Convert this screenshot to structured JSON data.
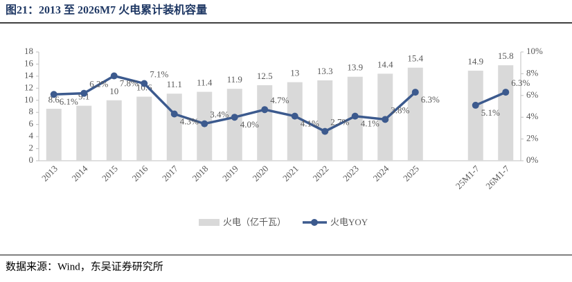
{
  "chart_data": {
    "type": "bar-line",
    "title": "图21：2013 至 2026M7 火电累计装机容量",
    "source": "数据来源：Wind，东吴证券研究所",
    "categories": [
      "2013",
      "2014",
      "2015",
      "2016",
      "2017",
      "2018",
      "2019",
      "2020",
      "2021",
      "2022",
      "2023",
      "2024",
      "2025",
      null,
      "25M1-7",
      "26M1-7"
    ],
    "series": [
      {
        "name": "火电（亿千瓦）",
        "type": "bar",
        "color": "#d9d9d9",
        "values": [
          8.6,
          9.1,
          10.0,
          10.6,
          11.1,
          11.4,
          11.9,
          12.5,
          13.0,
          13.3,
          13.9,
          14.4,
          15.4,
          null,
          14.9,
          15.8
        ]
      },
      {
        "name": "火电YOY",
        "type": "line",
        "axis": "y2",
        "color": "#3c5a8e",
        "values": [
          6.1,
          6.2,
          7.8,
          7.1,
          4.3,
          3.4,
          4.0,
          4.7,
          4.1,
          2.7,
          4.1,
          3.8,
          6.3,
          null,
          5.1,
          6.3
        ],
        "value_labels": [
          "6.1%",
          "6.2%",
          "7.8%",
          "7.1%",
          "4.3%",
          "3.4%",
          "4.0%",
          "4.7%",
          "4.1%",
          "2.7%",
          "4.1%",
          "3.8%",
          "6.3%",
          null,
          "5.1%",
          "6.3%"
        ]
      }
    ],
    "ylim": [
      0,
      18
    ],
    "yticks": [
      0,
      2,
      4,
      6,
      8,
      10,
      12,
      14,
      16,
      18
    ],
    "y2lim": [
      0,
      10
    ],
    "y2ticks": [
      {
        "value": 0,
        "label": "0%"
      },
      {
        "value": 2,
        "label": "2%"
      },
      {
        "value": 4,
        "label": "4%"
      },
      {
        "value": 6,
        "label": "6%"
      },
      {
        "value": 8,
        "label": "8%"
      },
      {
        "value": 10,
        "label": "10%"
      }
    ]
  }
}
